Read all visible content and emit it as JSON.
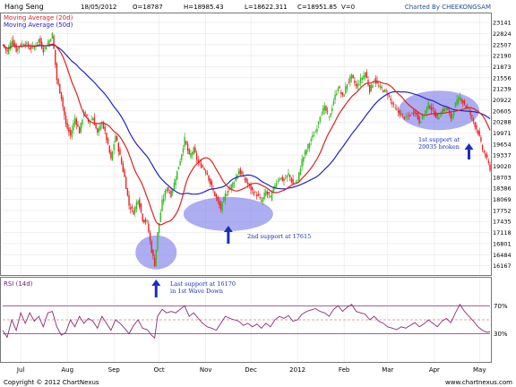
{
  "chart_data": {
    "type": "candlestick",
    "symbol": "Hang Seng",
    "header": {
      "date": "18/05/2012",
      "open": "O=18787",
      "high": "H=18985.43",
      "low": "L=18622.311",
      "close": "C=18951.85",
      "volume": "V=0",
      "credit": "Charted By CHEEKONGSAM"
    },
    "legend": [
      {
        "label": "Moving Average (20d)",
        "color": "#dd2222"
      },
      {
        "label": "Moving Average (50d)",
        "color": "#2222cc"
      }
    ],
    "ylim": [
      15900,
      23400
    ],
    "y_ticks": [
      23141,
      22824,
      22507,
      22190,
      21873,
      21556,
      21239,
      20922,
      20605,
      20288,
      19971,
      19654,
      19337,
      19020,
      18703,
      18386,
      18069,
      17752,
      17435,
      17118,
      16801,
      16484,
      16167
    ],
    "x_ticks": [
      {
        "label": "Jul",
        "day": 12
      },
      {
        "label": "Aug",
        "day": 43
      },
      {
        "label": "Sep",
        "day": 74
      },
      {
        "label": "Oct",
        "day": 104
      },
      {
        "label": "Nov",
        "day": 135
      },
      {
        "label": "Dec",
        "day": 165
      },
      {
        "label": "2012",
        "day": 196
      },
      {
        "label": "Feb",
        "day": 227
      },
      {
        "label": "Mar",
        "day": 256
      },
      {
        "label": "Apr",
        "day": 287
      },
      {
        "label": "May",
        "day": 317
      }
    ],
    "price_anchors": [
      [
        0,
        22500
      ],
      [
        3,
        22300
      ],
      [
        6,
        22650
      ],
      [
        9,
        22350
      ],
      [
        12,
        22500
      ],
      [
        15,
        22550
      ],
      [
        18,
        22400
      ],
      [
        21,
        22450
      ],
      [
        24,
        22650
      ],
      [
        27,
        22350
      ],
      [
        30,
        22550
      ],
      [
        33,
        22800
      ],
      [
        36,
        21500
      ],
      [
        39,
        21000
      ],
      [
        42,
        20200
      ],
      [
        45,
        19900
      ],
      [
        48,
        20400
      ],
      [
        51,
        20000
      ],
      [
        54,
        20600
      ],
      [
        57,
        20300
      ],
      [
        60,
        20400
      ],
      [
        63,
        19950
      ],
      [
        66,
        20300
      ],
      [
        69,
        19800
      ],
      [
        72,
        19200
      ],
      [
        75,
        19900
      ],
      [
        78,
        19300
      ],
      [
        81,
        18700
      ],
      [
        84,
        17900
      ],
      [
        87,
        17700
      ],
      [
        90,
        18100
      ],
      [
        93,
        17500
      ],
      [
        96,
        17400
      ],
      [
        99,
        16600
      ],
      [
        101,
        16200
      ],
      [
        103,
        17100
      ],
      [
        106,
        18000
      ],
      [
        109,
        18400
      ],
      [
        112,
        18200
      ],
      [
        115,
        18700
      ],
      [
        118,
        19200
      ],
      [
        121,
        19800
      ],
      [
        124,
        19300
      ],
      [
        127,
        19500
      ],
      [
        130,
        19100
      ],
      [
        133,
        19000
      ],
      [
        136,
        18800
      ],
      [
        139,
        18400
      ],
      [
        142,
        18100
      ],
      [
        145,
        17800
      ],
      [
        148,
        18200
      ],
      [
        151,
        18400
      ],
      [
        154,
        18600
      ],
      [
        157,
        18900
      ],
      [
        160,
        18700
      ],
      [
        163,
        18500
      ],
      [
        166,
        18300
      ],
      [
        169,
        18200
      ],
      [
        172,
        18000
      ],
      [
        175,
        18300
      ],
      [
        178,
        18100
      ],
      [
        181,
        18500
      ],
      [
        184,
        18700
      ],
      [
        187,
        18600
      ],
      [
        190,
        18800
      ],
      [
        193,
        18500
      ],
      [
        196,
        18600
      ],
      [
        199,
        19200
      ],
      [
        202,
        19500
      ],
      [
        205,
        19800
      ],
      [
        208,
        20000
      ],
      [
        211,
        20500
      ],
      [
        214,
        20700
      ],
      [
        217,
        20400
      ],
      [
        220,
        20900
      ],
      [
        223,
        21300
      ],
      [
        226,
        21000
      ],
      [
        229,
        21400
      ],
      [
        232,
        21600
      ],
      [
        235,
        21300
      ],
      [
        238,
        21500
      ],
      [
        241,
        21700
      ],
      [
        244,
        21200
      ],
      [
        247,
        21500
      ],
      [
        250,
        21300
      ],
      [
        253,
        21200
      ],
      [
        256,
        21100
      ],
      [
        259,
        20800
      ],
      [
        262,
        20600
      ],
      [
        265,
        20500
      ],
      [
        268,
        20400
      ],
      [
        271,
        20500
      ],
      [
        274,
        20600
      ],
      [
        277,
        20300
      ],
      [
        280,
        20500
      ],
      [
        283,
        20800
      ],
      [
        286,
        20600
      ],
      [
        289,
        20400
      ],
      [
        292,
        20600
      ],
      [
        295,
        20700
      ],
      [
        298,
        20400
      ],
      [
        301,
        20800
      ],
      [
        304,
        21000
      ],
      [
        307,
        20800
      ],
      [
        310,
        20600
      ],
      [
        313,
        20300
      ],
      [
        316,
        20000
      ],
      [
        319,
        19500
      ],
      [
        322,
        19200
      ],
      [
        324,
        18950
      ]
    ],
    "rsi": {
      "label": "RSI (14d)",
      "levels": [
        "70%",
        "30%"
      ],
      "anchors": [
        [
          0,
          35
        ],
        [
          3,
          25
        ],
        [
          6,
          50
        ],
        [
          9,
          35
        ],
        [
          12,
          60
        ],
        [
          15,
          45
        ],
        [
          18,
          60
        ],
        [
          21,
          48
        ],
        [
          24,
          55
        ],
        [
          27,
          40
        ],
        [
          30,
          60
        ],
        [
          33,
          62
        ],
        [
          36,
          40
        ],
        [
          39,
          28
        ],
        [
          42,
          32
        ],
        [
          45,
          50
        ],
        [
          48,
          40
        ],
        [
          51,
          55
        ],
        [
          54,
          45
        ],
        [
          57,
          52
        ],
        [
          60,
          48
        ],
        [
          63,
          38
        ],
        [
          66,
          55
        ],
        [
          69,
          45
        ],
        [
          72,
          35
        ],
        [
          75,
          50
        ],
        [
          78,
          45
        ],
        [
          81,
          38
        ],
        [
          84,
          30
        ],
        [
          87,
          42
        ],
        [
          90,
          50
        ],
        [
          93,
          38
        ],
        [
          96,
          36
        ],
        [
          99,
          28
        ],
        [
          101,
          24
        ],
        [
          103,
          55
        ],
        [
          106,
          65
        ],
        [
          109,
          60
        ],
        [
          112,
          62
        ],
        [
          115,
          60
        ],
        [
          118,
          65
        ],
        [
          121,
          70
        ],
        [
          124,
          55
        ],
        [
          127,
          60
        ],
        [
          130,
          52
        ],
        [
          133,
          45
        ],
        [
          136,
          40
        ],
        [
          139,
          38
        ],
        [
          142,
          35
        ],
        [
          145,
          45
        ],
        [
          148,
          55
        ],
        [
          151,
          52
        ],
        [
          154,
          50
        ],
        [
          157,
          48
        ],
        [
          160,
          42
        ],
        [
          163,
          45
        ],
        [
          166,
          40
        ],
        [
          169,
          44
        ],
        [
          172,
          38
        ],
        [
          175,
          45
        ],
        [
          178,
          40
        ],
        [
          181,
          50
        ],
        [
          184,
          55
        ],
        [
          187,
          52
        ],
        [
          190,
          56
        ],
        [
          193,
          48
        ],
        [
          196,
          50
        ],
        [
          199,
          58
        ],
        [
          202,
          62
        ],
        [
          205,
          64
        ],
        [
          208,
          66
        ],
        [
          211,
          62
        ],
        [
          214,
          60
        ],
        [
          217,
          55
        ],
        [
          220,
          65
        ],
        [
          223,
          70
        ],
        [
          226,
          62
        ],
        [
          229,
          68
        ],
        [
          232,
          72
        ],
        [
          235,
          62
        ],
        [
          238,
          60
        ],
        [
          241,
          58
        ],
        [
          244,
          50
        ],
        [
          247,
          55
        ],
        [
          250,
          48
        ],
        [
          253,
          45
        ],
        [
          256,
          40
        ],
        [
          259,
          38
        ],
        [
          262,
          36
        ],
        [
          265,
          40
        ],
        [
          268,
          38
        ],
        [
          271,
          42
        ],
        [
          274,
          46
        ],
        [
          277,
          40
        ],
        [
          280,
          44
        ],
        [
          283,
          50
        ],
        [
          286,
          45
        ],
        [
          289,
          40
        ],
        [
          292,
          48
        ],
        [
          295,
          52
        ],
        [
          298,
          46
        ],
        [
          301,
          60
        ],
        [
          304,
          72
        ],
        [
          307,
          62
        ],
        [
          310,
          55
        ],
        [
          313,
          48
        ],
        [
          316,
          40
        ],
        [
          319,
          35
        ],
        [
          322,
          32
        ],
        [
          324,
          33
        ]
      ]
    },
    "annotations": [
      {
        "text": [
          "Last support at 16170",
          "in 1st Wave Down"
        ],
        "day": 102,
        "price": 16170
      },
      {
        "text": [
          "2nd support at 17615"
        ],
        "day": 150,
        "price": 17615
      },
      {
        "text": [
          "1st support at",
          "20035 broken"
        ],
        "day": 310,
        "price": 20035
      }
    ],
    "highlight_ellipses": [
      {
        "day": 102,
        "price": 16550
      },
      {
        "day": 150,
        "price": 17650
      },
      {
        "day": 290,
        "price": 20620
      }
    ],
    "copyright": "Copyright © 2012 ChartNexus",
    "watermark": "www.chartnexus.com"
  }
}
